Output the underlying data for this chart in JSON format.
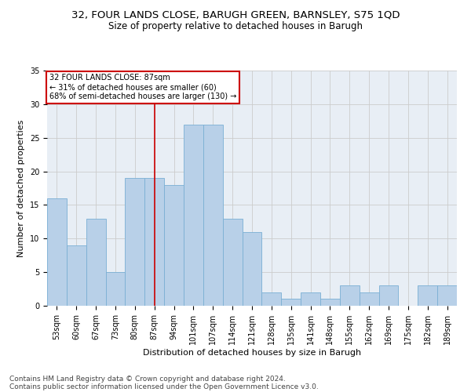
{
  "title1": "32, FOUR LANDS CLOSE, BARUGH GREEN, BARNSLEY, S75 1QD",
  "title2": "Size of property relative to detached houses in Barugh",
  "xlabel": "Distribution of detached houses by size in Barugh",
  "ylabel": "Number of detached properties",
  "categories": [
    "53sqm",
    "60sqm",
    "67sqm",
    "73sqm",
    "80sqm",
    "87sqm",
    "94sqm",
    "101sqm",
    "107sqm",
    "114sqm",
    "121sqm",
    "128sqm",
    "135sqm",
    "141sqm",
    "148sqm",
    "155sqm",
    "162sqm",
    "169sqm",
    "175sqm",
    "182sqm",
    "189sqm"
  ],
  "values": [
    16,
    9,
    13,
    5,
    19,
    19,
    18,
    27,
    27,
    13,
    11,
    2,
    1,
    2,
    1,
    3,
    2,
    3,
    0,
    3,
    3
  ],
  "bar_color": "#b8d0e8",
  "bar_edge_color": "#7aafd4",
  "reference_line_x": 5,
  "reference_line_label": "32 FOUR LANDS CLOSE: 87sqm",
  "annotation_line1": "← 31% of detached houses are smaller (60)",
  "annotation_line2": "68% of semi-detached houses are larger (130) →",
  "annotation_box_color": "#ffffff",
  "annotation_box_edge_color": "#cc0000",
  "vline_color": "#cc0000",
  "ylim": [
    0,
    35
  ],
  "yticks": [
    0,
    5,
    10,
    15,
    20,
    25,
    30,
    35
  ],
  "grid_color": "#cccccc",
  "background_color": "#e8eef5",
  "footer1": "Contains HM Land Registry data © Crown copyright and database right 2024.",
  "footer2": "Contains public sector information licensed under the Open Government Licence v3.0.",
  "title1_fontsize": 9.5,
  "title2_fontsize": 8.5,
  "xlabel_fontsize": 8,
  "ylabel_fontsize": 8,
  "tick_fontsize": 7,
  "annot_fontsize": 7,
  "footer_fontsize": 6.5
}
